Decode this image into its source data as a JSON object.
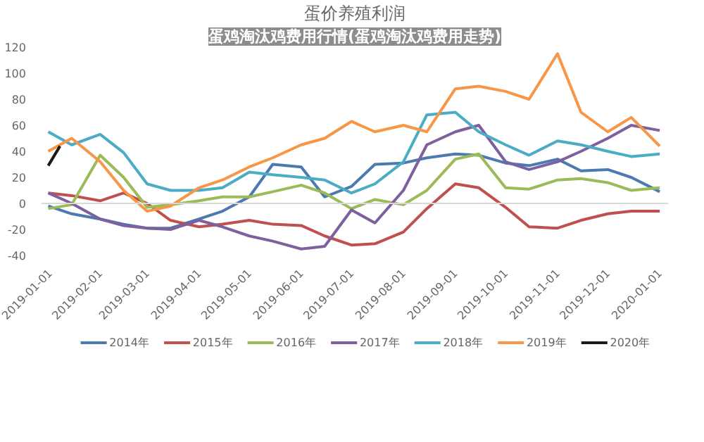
{
  "chart_data": {
    "type": "line",
    "title": "蛋价养殖利润",
    "subtitle": "蛋鸡淘汰鸡费用行情(蛋鸡淘汰鸡费用走势)",
    "x": [
      "2019-01-01",
      "2019-01-15",
      "2019-02-01",
      "2019-02-15",
      "2019-03-01",
      "2019-03-15",
      "2019-04-01",
      "2019-04-15",
      "2019-05-01",
      "2019-05-15",
      "2019-06-01",
      "2019-06-15",
      "2019-07-01",
      "2019-07-15",
      "2019-08-01",
      "2019-08-15",
      "2019-09-01",
      "2019-09-15",
      "2019-10-01",
      "2019-10-15",
      "2019-11-01",
      "2019-11-15",
      "2019-12-01",
      "2019-12-15",
      "2020-01-01"
    ],
    "series": [
      {
        "name": "2014年",
        "color": "#4a7ab0",
        "values": [
          -2,
          -8,
          -12,
          -16,
          -19,
          -19,
          -12,
          -6,
          5,
          30,
          28,
          5,
          13,
          30,
          31,
          35,
          38,
          37,
          31,
          29,
          34,
          25,
          26,
          20,
          9
        ]
      },
      {
        "name": "2015年",
        "color": "#c0504d",
        "values": [
          8,
          6,
          2,
          8,
          0,
          -13,
          -18,
          -16,
          -13,
          -16,
          -17,
          -25,
          -32,
          -31,
          -22,
          -4,
          15,
          12,
          -3,
          -18,
          -19,
          -13,
          -8,
          -6,
          -6
        ]
      },
      {
        "name": "2016年",
        "color": "#9bbb59",
        "values": [
          -4,
          -1,
          37,
          20,
          -3,
          -1,
          2,
          5,
          5,
          9,
          14,
          8,
          -4,
          3,
          -1,
          10,
          34,
          38,
          12,
          11,
          18,
          19,
          16,
          10,
          12
        ]
      },
      {
        "name": "2017年",
        "color": "#7f609e",
        "values": [
          8,
          0,
          -12,
          -17,
          -19,
          -20,
          -13,
          -18,
          -25,
          -29,
          -35,
          -33,
          -5,
          -15,
          10,
          45,
          55,
          60,
          32,
          26,
          32,
          40,
          50,
          60,
          56
        ]
      },
      {
        "name": "2018年",
        "color": "#4bacc6",
        "values": [
          55,
          45,
          53,
          39,
          15,
          10,
          10,
          12,
          24,
          22,
          20,
          18,
          8,
          15,
          32,
          68,
          70,
          55,
          45,
          37,
          48,
          45,
          40,
          36,
          38
        ]
      },
      {
        "name": "2019年",
        "color": "#f79646",
        "values": [
          40,
          50,
          32,
          10,
          -6,
          -2,
          12,
          18,
          28,
          35,
          45,
          50,
          63,
          55,
          60,
          55,
          88,
          90,
          86,
          80,
          115,
          70,
          55,
          66,
          44
        ]
      },
      {
        "name": "2020年",
        "color": "#1a1a1a",
        "x": [
          "2019-01-01",
          "2019-01-08"
        ],
        "values": [
          29,
          44
        ]
      }
    ],
    "xlim": [
      "2018-12-28",
      "2020-01-06"
    ],
    "xticks": [
      "2019-01-01",
      "2019-02-01",
      "2019-03-01",
      "2019-04-01",
      "2019-05-01",
      "2019-06-01",
      "2019-07-01",
      "2019-08-01",
      "2019-09-01",
      "2019-10-01",
      "2019-11-01",
      "2019-12-01",
      "2020-01-01"
    ],
    "ylim": [
      -40,
      120
    ],
    "yticks": [
      -40,
      -20,
      0,
      20,
      40,
      60,
      80,
      100,
      120
    ],
    "ref_lines": [
      {
        "axis": "y",
        "value": 0,
        "color": "#d9d9d9"
      }
    ],
    "grid": false,
    "legend": "bottom",
    "marker": "none",
    "line_style": "solid"
  }
}
